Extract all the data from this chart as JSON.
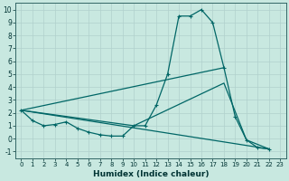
{
  "xlabel": "Humidex (Indice chaleur)",
  "background_color": "#c8e8e0",
  "grid_color": "#b0d0cc",
  "line_color": "#006666",
  "xlim": [
    -0.5,
    23.5
  ],
  "ylim": [
    -1.5,
    10.5
  ],
  "xticks": [
    0,
    1,
    2,
    3,
    4,
    5,
    6,
    7,
    8,
    9,
    10,
    11,
    12,
    13,
    14,
    15,
    16,
    17,
    18,
    19,
    20,
    21,
    22,
    23
  ],
  "yticks": [
    -1,
    0,
    1,
    2,
    3,
    4,
    5,
    6,
    7,
    8,
    9,
    10
  ],
  "series": [
    {
      "x": [
        0,
        1,
        2,
        3,
        4,
        5,
        6,
        7,
        8,
        9,
        10,
        11,
        12,
        13,
        14,
        15,
        16,
        17,
        18,
        19,
        20,
        21,
        22
      ],
      "y": [
        2.2,
        1.4,
        1.0,
        1.1,
        1.3,
        0.8,
        0.5,
        0.3,
        0.2,
        0.2,
        1.0,
        1.0,
        2.6,
        5.0,
        9.5,
        9.5,
        10.0,
        9.0,
        5.5,
        1.7,
        -0.1,
        -0.7,
        -0.8
      ],
      "marker": true
    },
    {
      "x": [
        0,
        18
      ],
      "y": [
        2.2,
        5.5
      ],
      "marker": false
    },
    {
      "x": [
        0,
        10,
        18,
        20,
        22
      ],
      "y": [
        2.2,
        1.0,
        4.3,
        -0.1,
        -0.8
      ],
      "marker": false
    },
    {
      "x": [
        0,
        22
      ],
      "y": [
        2.2,
        -0.8
      ],
      "marker": false
    }
  ]
}
